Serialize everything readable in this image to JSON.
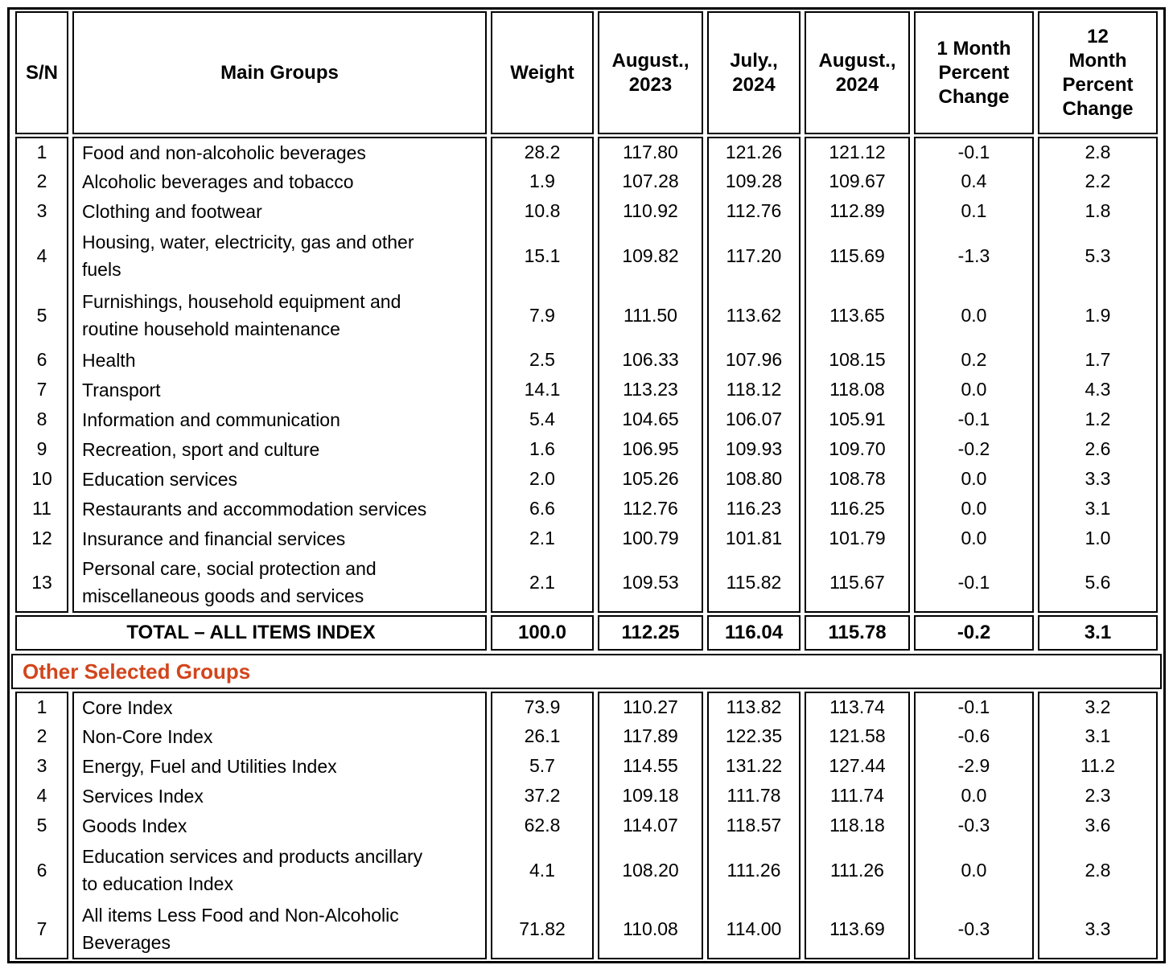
{
  "colors": {
    "accent": "#d2451c",
    "border": "#000000",
    "text": "#000000",
    "background": "#ffffff"
  },
  "columns": {
    "sn": "S/N",
    "main_groups": "Main Groups",
    "weight": "Weight",
    "aug_2023": "August.,\n2023",
    "jul_2024": "July.,\n2024",
    "aug_2024": "August.,\n2024",
    "one_month": "1 Month\nPercent\nChange",
    "twelve_month": "12\nMonth\nPercent\nChange"
  },
  "main_table": {
    "rows": [
      {
        "sn": "1",
        "label": "Food and non-alcoholic beverages",
        "weight": "28.2",
        "aug_2023": "117.80",
        "jul_2024": "121.26",
        "aug_2024": "121.12",
        "one_month": "-0.1",
        "twelve_month": "2.8",
        "lines": 1
      },
      {
        "sn": "2",
        "label": "Alcoholic beverages and tobacco",
        "weight": "1.9",
        "aug_2023": "107.28",
        "jul_2024": "109.28",
        "aug_2024": "109.67",
        "one_month": "0.4",
        "twelve_month": "2.2",
        "lines": 1
      },
      {
        "sn": "3",
        "label": "Clothing and footwear",
        "weight": "10.8",
        "aug_2023": "110.92",
        "jul_2024": "112.76",
        "aug_2024": "112.89",
        "one_month": "0.1",
        "twelve_month": "1.8",
        "lines": 1
      },
      {
        "sn": "4",
        "label": "Housing, water, electricity, gas and other\nfuels",
        "weight": "15.1",
        "aug_2023": "109.82",
        "jul_2024": "117.20",
        "aug_2024": "115.69",
        "one_month": "-1.3",
        "twelve_month": "5.3",
        "lines": 2
      },
      {
        "sn": "5",
        "label": "Furnishings, household equipment and\nroutine household maintenance",
        "weight": "7.9",
        "aug_2023": "111.50",
        "jul_2024": "113.62",
        "aug_2024": "113.65",
        "one_month": "0.0",
        "twelve_month": "1.9",
        "lines": 2
      },
      {
        "sn": "6",
        "label": "Health",
        "weight": "2.5",
        "aug_2023": "106.33",
        "jul_2024": "107.96",
        "aug_2024": "108.15",
        "one_month": "0.2",
        "twelve_month": "1.7",
        "lines": 1
      },
      {
        "sn": "7",
        "label": "Transport",
        "weight": "14.1",
        "aug_2023": "113.23",
        "jul_2024": "118.12",
        "aug_2024": "118.08",
        "one_month": "0.0",
        "twelve_month": "4.3",
        "lines": 1
      },
      {
        "sn": "8",
        "label": "Information and communication",
        "weight": "5.4",
        "aug_2023": "104.65",
        "jul_2024": "106.07",
        "aug_2024": "105.91",
        "one_month": "-0.1",
        "twelve_month": "1.2",
        "lines": 1
      },
      {
        "sn": "9",
        "label": "Recreation, sport and culture",
        "weight": "1.6",
        "aug_2023": "106.95",
        "jul_2024": "109.93",
        "aug_2024": "109.70",
        "one_month": "-0.2",
        "twelve_month": "2.6",
        "lines": 1
      },
      {
        "sn": "10",
        "label": "Education services",
        "weight": "2.0",
        "aug_2023": "105.26",
        "jul_2024": "108.80",
        "aug_2024": "108.78",
        "one_month": "0.0",
        "twelve_month": "3.3",
        "lines": 1
      },
      {
        "sn": "11",
        "label": "Restaurants and accommodation services",
        "weight": "6.6",
        "aug_2023": "112.76",
        "jul_2024": "116.23",
        "aug_2024": "116.25",
        "one_month": "0.0",
        "twelve_month": "3.1",
        "lines": 1
      },
      {
        "sn": "12",
        "label": "Insurance and financial services",
        "weight": "2.1",
        "aug_2023": "100.79",
        "jul_2024": "101.81",
        "aug_2024": "101.79",
        "one_month": "0.0",
        "twelve_month": "1.0",
        "lines": 1
      },
      {
        "sn": "13",
        "label": "Personal care, social protection and\nmiscellaneous goods and services",
        "weight": "2.1",
        "aug_2023": "109.53",
        "jul_2024": "115.82",
        "aug_2024": "115.67",
        "one_month": "-0.1",
        "twelve_month": "5.6",
        "lines": 2
      }
    ]
  },
  "total_row": {
    "label": "TOTAL – ALL ITEMS INDEX",
    "weight": "100.0",
    "aug_2023": "112.25",
    "jul_2024": "116.04",
    "aug_2024": "115.78",
    "one_month": "-0.2",
    "twelve_month": "3.1"
  },
  "other_groups": {
    "title": "Other Selected Groups",
    "rows": [
      {
        "sn": "1",
        "label": "Core Index",
        "weight": "73.9",
        "aug_2023": "110.27",
        "jul_2024": "113.82",
        "aug_2024": "113.74",
        "one_month": "-0.1",
        "twelve_month": "3.2",
        "lines": 1
      },
      {
        "sn": "2",
        "label": "Non-Core Index",
        "weight": "26.1",
        "aug_2023": "117.89",
        "jul_2024": "122.35",
        "aug_2024": "121.58",
        "one_month": "-0.6",
        "twelve_month": "3.1",
        "lines": 1
      },
      {
        "sn": "3",
        "label": "Energy, Fuel and Utilities Index",
        "weight": "5.7",
        "aug_2023": "114.55",
        "jul_2024": "131.22",
        "aug_2024": "127.44",
        "one_month": "-2.9",
        "twelve_month": "11.2",
        "lines": 1
      },
      {
        "sn": "4",
        "label": "Services Index",
        "weight": "37.2",
        "aug_2023": "109.18",
        "jul_2024": "111.78",
        "aug_2024": "111.74",
        "one_month": "0.0",
        "twelve_month": "2.3",
        "lines": 1
      },
      {
        "sn": "5",
        "label": "Goods Index",
        "weight": "62.8",
        "aug_2023": "114.07",
        "jul_2024": "118.57",
        "aug_2024": "118.18",
        "one_month": "-0.3",
        "twelve_month": "3.6",
        "lines": 1
      },
      {
        "sn": "6",
        "label": "Education services and products ancillary\nto education Index",
        "weight": "4.1",
        "aug_2023": "108.20",
        "jul_2024": "111.26",
        "aug_2024": "111.26",
        "one_month": "0.0",
        "twelve_month": "2.8",
        "lines": 2
      },
      {
        "sn": "7",
        "label": "All items Less Food and Non-Alcoholic\nBeverages",
        "weight": "71.82",
        "aug_2023": "110.08",
        "jul_2024": "114.00",
        "aug_2024": "113.69",
        "one_month": "-0.3",
        "twelve_month": "3.3",
        "lines": 2
      }
    ]
  }
}
